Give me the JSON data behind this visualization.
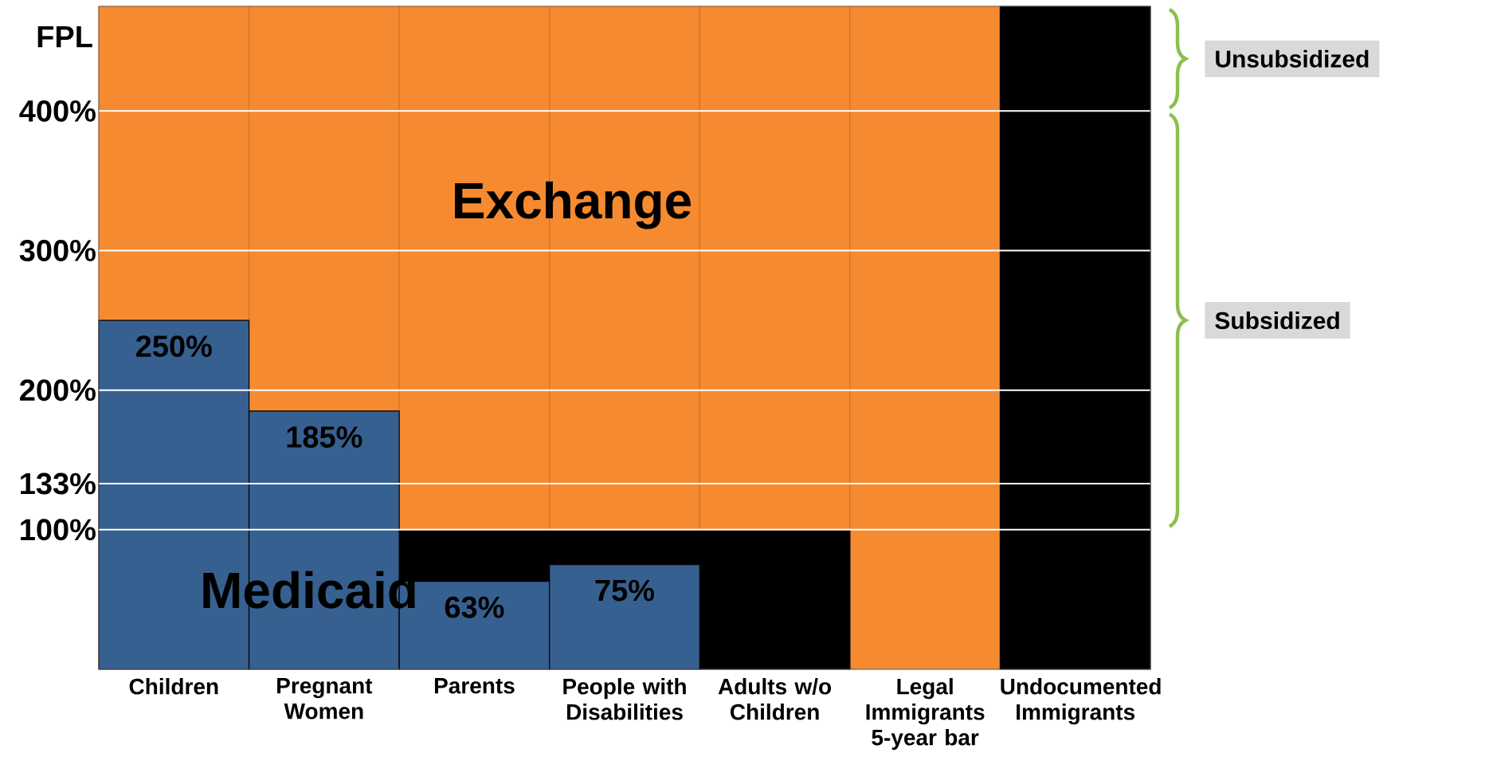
{
  "chart_data": {
    "type": "bar",
    "stacked": true,
    "ylabel": "FPL",
    "categories": [
      "Children",
      "Pregnant Women",
      "Parents",
      "People with Disabilities",
      "Adults w/o Children",
      "Legal Immigrants 5-year bar",
      "Undocumented Immigrants"
    ],
    "series": [
      {
        "name": "Medicaid",
        "color": "#36608f",
        "values": [
          250,
          185,
          63,
          75,
          0,
          0,
          0
        ],
        "value_labels": [
          "250%",
          "185%",
          "63%",
          "75%",
          null,
          null,
          null
        ]
      },
      {
        "color": "#000000",
        "values": [
          0,
          0,
          37,
          25,
          100,
          0,
          475
        ]
      },
      {
        "name": "Exchange",
        "color": "#f58a30",
        "values": [
          225,
          290,
          375,
          375,
          375,
          475,
          0
        ]
      }
    ],
    "ylim": [
      0,
      475
    ],
    "yticks": [
      {
        "value": 100,
        "label": "100%"
      },
      {
        "value": 133,
        "label": "133%"
      },
      {
        "value": 200,
        "label": "200%"
      },
      {
        "value": 300,
        "label": "300%"
      },
      {
        "value": 400,
        "label": "400%"
      }
    ],
    "grid": "y",
    "annotations": [
      "Unsubsidized",
      "Subsidized"
    ]
  }
}
